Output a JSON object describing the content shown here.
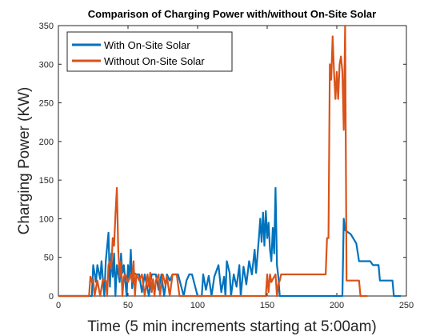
{
  "chart_data": {
    "type": "line",
    "title": "Comparison of Charging Power with/without On-Site Solar",
    "xlabel": "Time (5 min increments starting at 5:00am)",
    "ylabel": "Charging Power (KW)",
    "xlim": [
      0,
      250
    ],
    "ylim": [
      0,
      350
    ],
    "xticks": [
      0,
      50,
      100,
      150,
      200,
      250
    ],
    "yticks": [
      0,
      50,
      100,
      150,
      200,
      250,
      300,
      350
    ],
    "legend_position": "top-left",
    "series": [
      {
        "name": "With On-Site Solar",
        "color": "#0072BD",
        "points": [
          [
            0,
            0
          ],
          [
            20,
            0
          ],
          [
            24,
            0
          ],
          [
            25,
            40
          ],
          [
            27,
            18
          ],
          [
            28,
            40
          ],
          [
            30,
            22
          ],
          [
            31,
            45
          ],
          [
            32,
            20
          ],
          [
            33,
            0
          ],
          [
            34,
            45
          ],
          [
            36,
            82
          ],
          [
            37,
            12
          ],
          [
            38,
            55
          ],
          [
            39,
            25
          ],
          [
            40,
            55
          ],
          [
            41,
            0
          ],
          [
            42,
            40
          ],
          [
            44,
            18
          ],
          [
            45,
            55
          ],
          [
            46,
            30
          ],
          [
            47,
            40
          ],
          [
            49,
            0
          ],
          [
            50,
            40
          ],
          [
            51,
            22
          ],
          [
            52,
            60
          ],
          [
            53,
            10
          ],
          [
            54,
            30
          ],
          [
            56,
            28
          ],
          [
            58,
            28
          ],
          [
            60,
            5
          ],
          [
            62,
            28
          ],
          [
            65,
            0
          ],
          [
            67,
            28
          ],
          [
            70,
            28
          ],
          [
            72,
            8
          ],
          [
            74,
            28
          ],
          [
            76,
            0
          ],
          [
            78,
            28
          ],
          [
            80,
            20
          ],
          [
            82,
            28
          ],
          [
            86,
            28
          ],
          [
            90,
            0
          ],
          [
            92,
            20
          ],
          [
            94,
            28
          ],
          [
            96,
            28
          ],
          [
            100,
            0
          ],
          [
            103,
            0
          ],
          [
            104,
            28
          ],
          [
            106,
            8
          ],
          [
            108,
            26
          ],
          [
            110,
            0
          ],
          [
            112,
            25
          ],
          [
            115,
            40
          ],
          [
            117,
            5
          ],
          [
            119,
            25
          ],
          [
            120,
            0
          ],
          [
            121,
            45
          ],
          [
            123,
            30
          ],
          [
            124,
            0
          ],
          [
            126,
            28
          ],
          [
            128,
            12
          ],
          [
            130,
            40
          ],
          [
            131,
            0
          ],
          [
            133,
            38
          ],
          [
            135,
            15
          ],
          [
            137,
            45
          ],
          [
            139,
            28
          ],
          [
            141,
            60
          ],
          [
            142,
            30
          ],
          [
            144,
            75
          ],
          [
            145,
            100
          ],
          [
            146,
            70
          ],
          [
            147,
            108
          ],
          [
            148,
            65
          ],
          [
            149,
            110
          ],
          [
            150,
            75
          ],
          [
            151,
            95
          ],
          [
            152,
            60
          ],
          [
            153,
            45
          ],
          [
            154,
            88
          ],
          [
            155,
            55
          ],
          [
            156,
            140
          ],
          [
            157,
            40
          ],
          [
            158,
            25
          ],
          [
            159,
            0
          ],
          [
            160,
            0
          ],
          [
            200,
            0
          ],
          [
            203,
            0
          ],
          [
            204,
            0
          ],
          [
            205,
            100
          ],
          [
            206,
            85
          ],
          [
            210,
            80
          ],
          [
            214,
            68
          ],
          [
            216,
            45
          ],
          [
            218,
            45
          ],
          [
            220,
            45
          ],
          [
            224,
            45
          ],
          [
            226,
            40
          ],
          [
            230,
            40
          ],
          [
            231,
            20
          ],
          [
            234,
            20
          ],
          [
            240,
            20
          ],
          [
            241,
            0
          ],
          [
            246,
            0
          ]
        ]
      },
      {
        "name": "Without On-Site Solar",
        "color": "#D95319",
        "points": [
          [
            0,
            0
          ],
          [
            22,
            0
          ],
          [
            23,
            25
          ],
          [
            24,
            18
          ],
          [
            25,
            22
          ],
          [
            26,
            0
          ],
          [
            28,
            20
          ],
          [
            30,
            0
          ],
          [
            32,
            22
          ],
          [
            34,
            20
          ],
          [
            35,
            0
          ],
          [
            36,
            40
          ],
          [
            37,
            45
          ],
          [
            38,
            35
          ],
          [
            39,
            75
          ],
          [
            40,
            65
          ],
          [
            41,
            105
          ],
          [
            42,
            140
          ],
          [
            43,
            60
          ],
          [
            44,
            25
          ],
          [
            45,
            45
          ],
          [
            46,
            0
          ],
          [
            47,
            25
          ],
          [
            48,
            28
          ],
          [
            50,
            18
          ],
          [
            52,
            28
          ],
          [
            53,
            18
          ],
          [
            54,
            45
          ],
          [
            55,
            0
          ],
          [
            56,
            28
          ],
          [
            58,
            20
          ],
          [
            60,
            28
          ],
          [
            62,
            0
          ],
          [
            64,
            28
          ],
          [
            65,
            12
          ],
          [
            66,
            30
          ],
          [
            67,
            5
          ],
          [
            68,
            22
          ],
          [
            69,
            0
          ],
          [
            70,
            20
          ],
          [
            72,
            28
          ],
          [
            73,
            0
          ],
          [
            75,
            28
          ],
          [
            77,
            14
          ],
          [
            78,
            25
          ],
          [
            80,
            0
          ],
          [
            82,
            28
          ],
          [
            85,
            28
          ],
          [
            87,
            0
          ],
          [
            148,
            0
          ],
          [
            149,
            0
          ],
          [
            150,
            28
          ],
          [
            151,
            5
          ],
          [
            152,
            28
          ],
          [
            153,
            18
          ],
          [
            154,
            22
          ],
          [
            156,
            28
          ],
          [
            157,
            0
          ],
          [
            158,
            15
          ],
          [
            159,
            20
          ],
          [
            160,
            28
          ],
          [
            168,
            28
          ],
          [
            175,
            28
          ],
          [
            182,
            28
          ],
          [
            192,
            28
          ],
          [
            193,
            75
          ],
          [
            194,
            75
          ],
          [
            195,
            300
          ],
          [
            196,
            280
          ],
          [
            197,
            336
          ],
          [
            198,
            290
          ],
          [
            199,
            255
          ],
          [
            200,
            290
          ],
          [
            201,
            255
          ],
          [
            202,
            300
          ],
          [
            203,
            310
          ],
          [
            204,
            290
          ],
          [
            205,
            215
          ],
          [
            206,
            350
          ],
          [
            207,
            20
          ],
          [
            208,
            20
          ],
          [
            212,
            20
          ],
          [
            216,
            20
          ],
          [
            217,
            0
          ],
          [
            220,
            0
          ],
          [
            222,
            0
          ]
        ]
      }
    ]
  }
}
